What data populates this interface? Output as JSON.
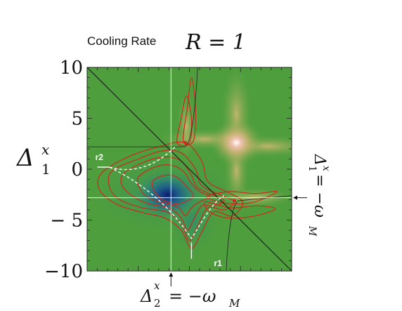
{
  "chart_data": {
    "type": "heatmap",
    "title_text": "Cooling Rate",
    "title_math": "R = 1",
    "ylabel_main": "Δ",
    "ylabel_sub": "1",
    "ylabel_sup": "x",
    "xlabel_main": "Δ",
    "xlabel_sub": "2",
    "xlabel_sup": "x",
    "xlabel_rest": "= −ω",
    "xlabel_rest_sub": "M",
    "right_label_main": "Δ",
    "right_label_sub": "1",
    "right_label_sup": "x",
    "right_label_rest": "= −ω",
    "right_label_rest_sub": "M",
    "xlim": [
      -10,
      10
    ],
    "ylim": [
      -10,
      10
    ],
    "y_ticks": [
      {
        "value": 10,
        "label": "10"
      },
      {
        "value": 5,
        "label": "5"
      },
      {
        "value": 0,
        "label": "0"
      },
      {
        "value": -5,
        "label": "− 5"
      },
      {
        "value": -10,
        "label": "−10"
      }
    ],
    "guide_x": -1.8,
    "guide_y": -2.8,
    "annotations": [
      {
        "text": "r2",
        "x": -9.2,
        "y": 0.9
      },
      {
        "text": "r1",
        "x": 2.4,
        "y": -9.5
      }
    ],
    "hot_spot": {
      "x": 4.6,
      "y": 2.6
    },
    "cold_spot": {
      "x": -1.8,
      "y": -2.4
    },
    "diagonal": {
      "from": [
        -10,
        10
      ],
      "to": [
        10,
        -10
      ]
    },
    "colors": {
      "background": "#4e9e3e",
      "contour": "#cc2a1e",
      "guide": "#ffffff",
      "hot": "#ffe4d2",
      "cold": "#0d2a7a",
      "diagonal": "#111111"
    }
  }
}
